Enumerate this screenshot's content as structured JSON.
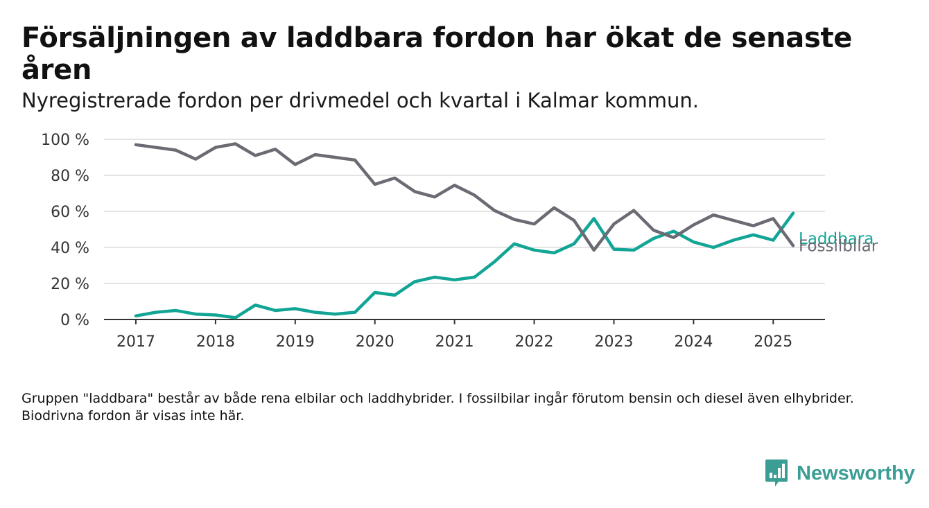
{
  "title": "Försäljningen av laddbara fordon har ökat de senaste åren",
  "subtitle": "Nyregistrerade fordon per drivmedel och kvartal i Kalmar kommun.",
  "footnote": "Gruppen \"laddbara\" består av både rena elbilar och laddhybrider. I fossilbilar ingår förutom bensin och diesel även elhybrider. Biodrivna fordon är visas inte här.",
  "brand": {
    "name": "Newsworthy",
    "icon": "bar-chart-speech-bubble-icon",
    "color": "#3a9e94"
  },
  "chart_data": {
    "type": "line",
    "x": [
      2017.0,
      2017.25,
      2017.5,
      2017.75,
      2018.0,
      2018.25,
      2018.5,
      2018.75,
      2019.0,
      2019.25,
      2019.5,
      2019.75,
      2020.0,
      2020.25,
      2020.5,
      2020.75,
      2021.0,
      2021.25,
      2021.5,
      2021.75,
      2022.0,
      2022.25,
      2022.5,
      2022.75,
      2023.0,
      2023.25,
      2023.5,
      2023.75,
      2024.0,
      2024.25,
      2024.5,
      2024.75,
      2025.0,
      2025.25
    ],
    "x_ticks": [
      "2017",
      "2018",
      "2019",
      "2020",
      "2021",
      "2022",
      "2023",
      "2024",
      "2025"
    ],
    "x_tick_values": [
      2017,
      2018,
      2019,
      2020,
      2021,
      2022,
      2023,
      2024,
      2025
    ],
    "xlim": [
      2016.6,
      2025.65
    ],
    "ylim": [
      0,
      100
    ],
    "y_ticks": [
      "0 %",
      "20 %",
      "40 %",
      "60 %",
      "80 %",
      "100 %"
    ],
    "y_tick_values": [
      0,
      20,
      40,
      60,
      80,
      100
    ],
    "grid": "horizontal",
    "series": [
      {
        "name": "Laddbara",
        "color": "#12a596",
        "values": [
          2,
          4,
          5,
          3,
          2.5,
          1,
          8,
          5,
          6,
          4,
          3,
          4,
          15,
          13.5,
          21,
          23.5,
          22,
          23.5,
          32,
          42,
          38.5,
          37,
          42,
          56,
          39,
          38.5,
          45,
          49,
          43,
          40,
          44,
          47,
          44,
          59
        ]
      },
      {
        "name": "Fossilbilar",
        "color": "#6c6a73",
        "values": [
          97,
          95.5,
          94,
          89,
          95.5,
          97.5,
          91,
          94.5,
          86,
          91.5,
          90,
          88.5,
          75,
          78.5,
          71,
          68,
          74.5,
          69,
          60.5,
          55.5,
          53,
          62,
          55,
          38.5,
          53,
          60.5,
          49.5,
          45.5,
          52.5,
          58,
          55,
          52,
          56,
          41
        ]
      }
    ]
  }
}
